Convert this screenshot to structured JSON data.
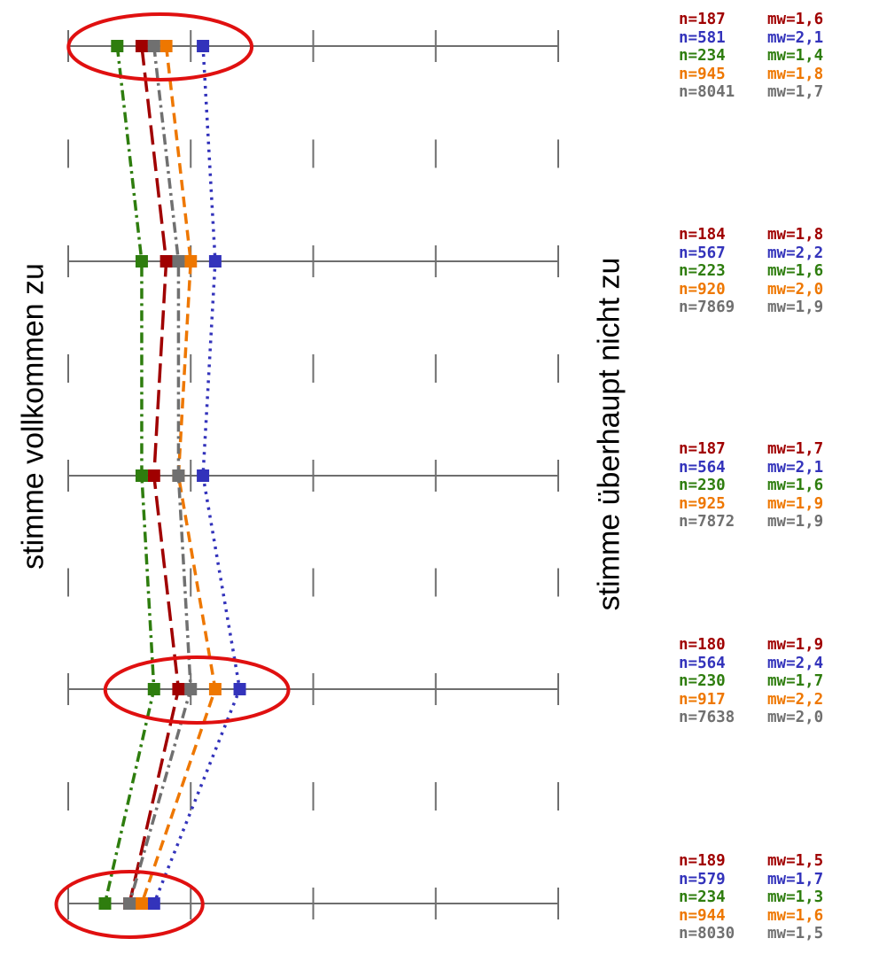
{
  "chart_data": {
    "type": "line",
    "orientation": "vertical-profile",
    "xlabel_left": "stimme vollkommen zu",
    "xlabel_right": "stimme überhaupt nicht zu",
    "xlim": [
      1,
      5
    ],
    "grid": true,
    "items": [
      "1",
      "2",
      "3",
      "4",
      "5"
    ],
    "series": [
      {
        "color": "#a00000",
        "line_style": "long-dash",
        "values": [
          1.6,
          1.8,
          1.7,
          1.9,
          1.5
        ],
        "n": [
          "n=187",
          "n=184",
          "n=187",
          "n=180",
          "n=189"
        ],
        "mw": [
          "mw=1,6",
          "mw=1,8",
          "mw=1,7",
          "mw=1,9",
          "mw=1,5"
        ]
      },
      {
        "color": "#3333bb",
        "line_style": "dotted",
        "values": [
          2.1,
          2.2,
          2.1,
          2.4,
          1.7
        ],
        "n": [
          "n=581",
          "n=567",
          "n=564",
          "n=564",
          "n=579"
        ],
        "mw": [
          "mw=2,1",
          "mw=2,2",
          "mw=2,1",
          "mw=2,4",
          "mw=1,7"
        ]
      },
      {
        "color": "#2e7d0e",
        "line_style": "dash-dot",
        "values": [
          1.4,
          1.6,
          1.6,
          1.7,
          1.3
        ],
        "n": [
          "n=234",
          "n=223",
          "n=230",
          "n=230",
          "n=234"
        ],
        "mw": [
          "mw=1,4",
          "mw=1,6",
          "mw=1,6",
          "mw=1,7",
          "mw=1,3"
        ]
      },
      {
        "color": "#ee7700",
        "line_style": "dashed",
        "values": [
          1.8,
          2.0,
          1.9,
          2.2,
          1.6
        ],
        "n": [
          "n=945",
          "n=920",
          "n=925",
          "n=917",
          "n=944"
        ],
        "mw": [
          "mw=1,8",
          "mw=2,0",
          "mw=1,9",
          "mw=2,2",
          "mw=1,6"
        ]
      },
      {
        "color": "#707070",
        "line_style": "dash-dot",
        "values": [
          1.7,
          1.9,
          1.9,
          2.0,
          1.5
        ],
        "n": [
          "n=8041",
          "n=7869",
          "n=7872",
          "n=7638",
          "n=8030"
        ],
        "mw": [
          "mw=1,7",
          "mw=1,9",
          "mw=1,9",
          "mw=2,0",
          "mw=1,5"
        ]
      }
    ],
    "annotations": [
      {
        "type": "ellipse",
        "color": "#e01010",
        "item_index": 0
      },
      {
        "type": "ellipse",
        "color": "#e01010",
        "item_index": 3
      },
      {
        "type": "ellipse",
        "color": "#e01010",
        "item_index": 4
      }
    ]
  },
  "labels": {
    "left": "stimme vollkommen zu",
    "right": "stimme überhaupt nicht zu"
  },
  "stats": [
    [
      {
        "n": "n=187",
        "mw": "mw=1,6",
        "color": "#a00000"
      },
      {
        "n": "n=581",
        "mw": "mw=2,1",
        "color": "#3333bb"
      },
      {
        "n": "n=234",
        "mw": "mw=1,4",
        "color": "#2e7d0e"
      },
      {
        "n": "n=945",
        "mw": "mw=1,8",
        "color": "#ee7700"
      },
      {
        "n": "n=8041",
        "mw": "mw=1,7",
        "color": "#707070"
      }
    ],
    [
      {
        "n": "n=184",
        "mw": "mw=1,8",
        "color": "#a00000"
      },
      {
        "n": "n=567",
        "mw": "mw=2,2",
        "color": "#3333bb"
      },
      {
        "n": "n=223",
        "mw": "mw=1,6",
        "color": "#2e7d0e"
      },
      {
        "n": "n=920",
        "mw": "mw=2,0",
        "color": "#ee7700"
      },
      {
        "n": "n=7869",
        "mw": "mw=1,9",
        "color": "#707070"
      }
    ],
    [
      {
        "n": "n=187",
        "mw": "mw=1,7",
        "color": "#a00000"
      },
      {
        "n": "n=564",
        "mw": "mw=2,1",
        "color": "#3333bb"
      },
      {
        "n": "n=230",
        "mw": "mw=1,6",
        "color": "#2e7d0e"
      },
      {
        "n": "n=925",
        "mw": "mw=1,9",
        "color": "#ee7700"
      },
      {
        "n": "n=7872",
        "mw": "mw=1,9",
        "color": "#707070"
      }
    ],
    [
      {
        "n": "n=180",
        "mw": "mw=1,9",
        "color": "#a00000"
      },
      {
        "n": "n=564",
        "mw": "mw=2,4",
        "color": "#3333bb"
      },
      {
        "n": "n=230",
        "mw": "mw=1,7",
        "color": "#2e7d0e"
      },
      {
        "n": "n=917",
        "mw": "mw=2,2",
        "color": "#ee7700"
      },
      {
        "n": "n=7638",
        "mw": "mw=2,0",
        "color": "#707070"
      }
    ],
    [
      {
        "n": "n=189",
        "mw": "mw=1,5",
        "color": "#a00000"
      },
      {
        "n": "n=579",
        "mw": "mw=1,7",
        "color": "#3333bb"
      },
      {
        "n": "n=234",
        "mw": "mw=1,3",
        "color": "#2e7d0e"
      },
      {
        "n": "n=944",
        "mw": "mw=1,6",
        "color": "#ee7700"
      },
      {
        "n": "n=8030",
        "mw": "mw=1,5",
        "color": "#707070"
      }
    ]
  ]
}
